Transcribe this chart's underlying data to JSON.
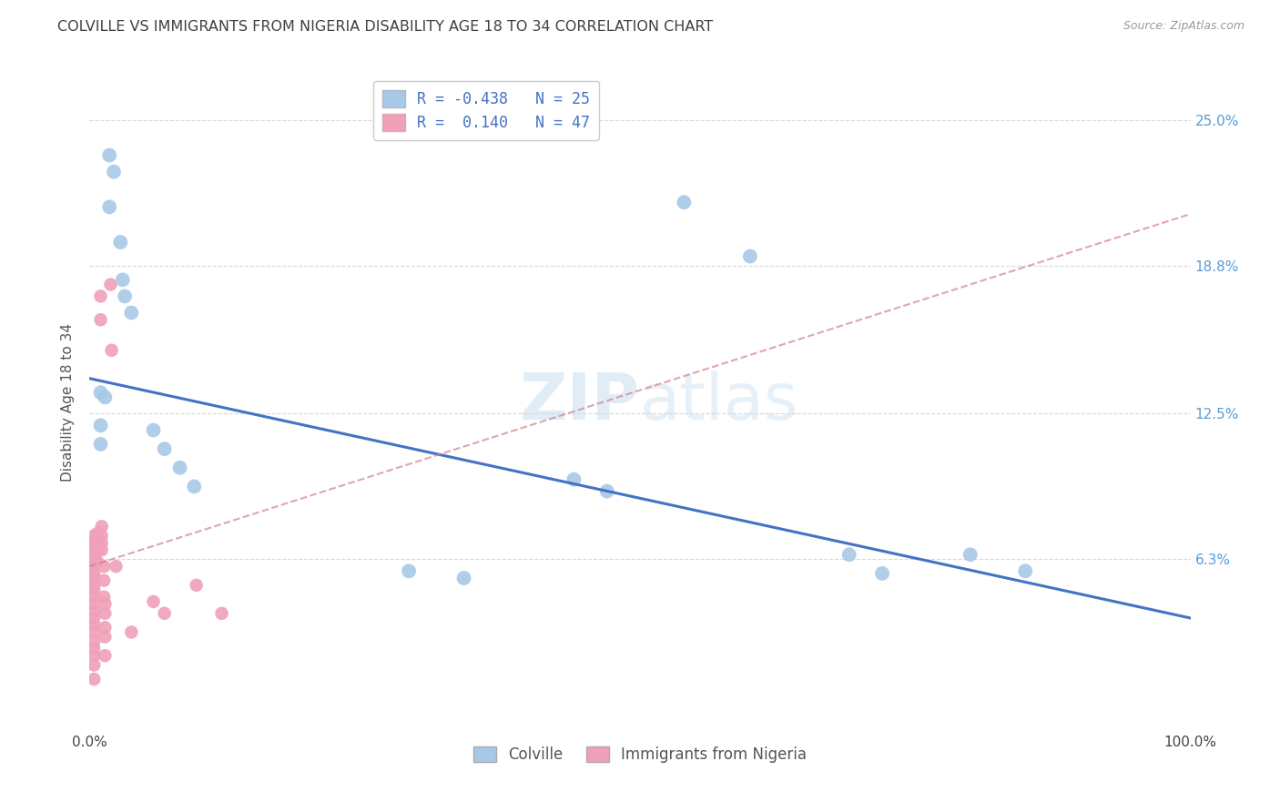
{
  "title": "COLVILLE VS IMMIGRANTS FROM NIGERIA DISABILITY AGE 18 TO 34 CORRELATION CHART",
  "source": "Source: ZipAtlas.com",
  "ylabel": "Disability Age 18 to 34",
  "ytick_labels": [
    "6.3%",
    "12.5%",
    "18.8%",
    "25.0%"
  ],
  "ytick_values": [
    0.063,
    0.125,
    0.188,
    0.25
  ],
  "xlim": [
    0.0,
    1.0
  ],
  "ylim": [
    -0.01,
    0.27
  ],
  "legend_blue_r": "-0.438",
  "legend_blue_n": "25",
  "legend_pink_r": "0.140",
  "legend_pink_n": "47",
  "legend_label_blue": "Colville",
  "legend_label_pink": "Immigrants from Nigeria",
  "watermark": "ZIPatlas",
  "blue_color": "#a8c8e8",
  "pink_color": "#f0a0b8",
  "blue_line_color": "#4472c4",
  "pink_line_color": "#d08090",
  "blue_scatter": [
    [
      0.018,
      0.235
    ],
    [
      0.022,
      0.228
    ],
    [
      0.018,
      0.213
    ],
    [
      0.028,
      0.198
    ],
    [
      0.03,
      0.182
    ],
    [
      0.032,
      0.175
    ],
    [
      0.038,
      0.168
    ],
    [
      0.01,
      0.134
    ],
    [
      0.014,
      0.132
    ],
    [
      0.01,
      0.12
    ],
    [
      0.01,
      0.112
    ],
    [
      0.058,
      0.118
    ],
    [
      0.068,
      0.11
    ],
    [
      0.082,
      0.102
    ],
    [
      0.095,
      0.094
    ],
    [
      0.44,
      0.097
    ],
    [
      0.47,
      0.092
    ],
    [
      0.29,
      0.058
    ],
    [
      0.34,
      0.055
    ],
    [
      0.54,
      0.215
    ],
    [
      0.6,
      0.192
    ],
    [
      0.69,
      0.065
    ],
    [
      0.72,
      0.057
    ],
    [
      0.8,
      0.065
    ],
    [
      0.85,
      0.058
    ]
  ],
  "pink_scatter": [
    [
      0.004,
      0.073
    ],
    [
      0.004,
      0.07
    ],
    [
      0.004,
      0.068
    ],
    [
      0.004,
      0.065
    ],
    [
      0.004,
      0.062
    ],
    [
      0.004,
      0.06
    ],
    [
      0.004,
      0.057
    ],
    [
      0.004,
      0.055
    ],
    [
      0.004,
      0.052
    ],
    [
      0.004,
      0.05
    ],
    [
      0.004,
      0.047
    ],
    [
      0.004,
      0.044
    ],
    [
      0.004,
      0.041
    ],
    [
      0.004,
      0.038
    ],
    [
      0.004,
      0.035
    ],
    [
      0.004,
      0.032
    ],
    [
      0.004,
      0.028
    ],
    [
      0.004,
      0.025
    ],
    [
      0.004,
      0.022
    ],
    [
      0.004,
      0.018
    ],
    [
      0.004,
      0.012
    ],
    [
      0.007,
      0.074
    ],
    [
      0.007,
      0.07
    ],
    [
      0.007,
      0.067
    ],
    [
      0.007,
      0.062
    ],
    [
      0.01,
      0.175
    ],
    [
      0.01,
      0.165
    ],
    [
      0.011,
      0.077
    ],
    [
      0.011,
      0.073
    ],
    [
      0.011,
      0.07
    ],
    [
      0.011,
      0.067
    ],
    [
      0.013,
      0.06
    ],
    [
      0.013,
      0.054
    ],
    [
      0.013,
      0.047
    ],
    [
      0.014,
      0.044
    ],
    [
      0.014,
      0.04
    ],
    [
      0.014,
      0.034
    ],
    [
      0.014,
      0.03
    ],
    [
      0.014,
      0.022
    ],
    [
      0.019,
      0.18
    ],
    [
      0.02,
      0.152
    ],
    [
      0.024,
      0.06
    ],
    [
      0.097,
      0.052
    ],
    [
      0.12,
      0.04
    ],
    [
      0.038,
      0.032
    ],
    [
      0.058,
      0.045
    ],
    [
      0.068,
      0.04
    ]
  ],
  "blue_line_x": [
    0.0,
    1.0
  ],
  "blue_line_y": [
    0.14,
    0.038
  ],
  "pink_line_x": [
    0.0,
    1.0
  ],
  "pink_line_y": [
    0.06,
    0.21
  ],
  "background_color": "#ffffff",
  "grid_color": "#d8d8d8",
  "title_color": "#404040",
  "right_tick_color": "#5b9bd5"
}
